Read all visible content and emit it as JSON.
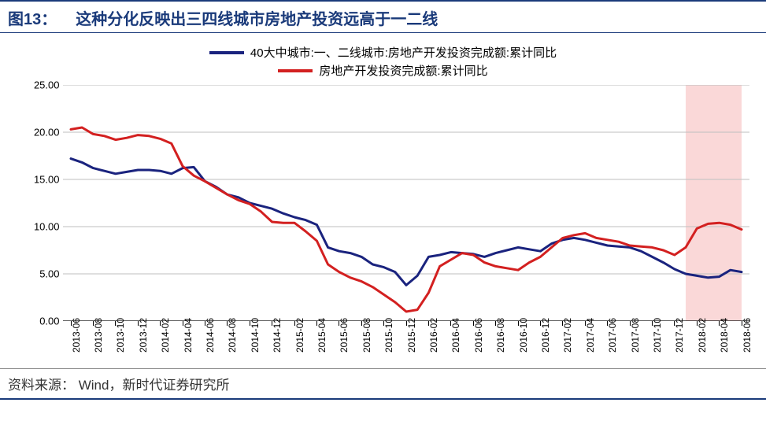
{
  "figure": {
    "label": "图13：",
    "title": "这种分化反映出三四线城市房地产投资远高于一二线"
  },
  "legend": {
    "items": [
      {
        "label": "40大中城市:一、二线城市:房地产开发投资完成额:累计同比",
        "color": "#1a237e"
      },
      {
        "label": "房地产开发投资完成额:累计同比",
        "color": "#d32020"
      }
    ]
  },
  "chart": {
    "type": "line",
    "background_color": "#ffffff",
    "grid_color": "#bfbfbf",
    "grid_width": 1,
    "axis_color": "#000000",
    "ylim": [
      0,
      25
    ],
    "ytick_step": 5,
    "yticks": [
      0,
      5,
      10,
      15,
      20,
      25
    ],
    "ytick_labels": [
      "0.00",
      "5.00",
      "10.00",
      "15.00",
      "20.00",
      "25.00"
    ],
    "ytick_fontsize": 13,
    "xtick_fontsize": 12,
    "xtick_rotation": -90,
    "line_width": 3,
    "highlight_band": {
      "x_start_index": 55,
      "x_end_index": 60,
      "fill": "#f5b8b8",
      "opacity": 0.55
    },
    "x_categories": [
      "2013-06",
      "2013-07",
      "2013-08",
      "2013-09",
      "2013-10",
      "2013-11",
      "2013-12",
      "2014-01",
      "2014-02",
      "2014-03",
      "2014-04",
      "2014-05",
      "2014-06",
      "2014-07",
      "2014-08",
      "2014-09",
      "2014-10",
      "2014-11",
      "2014-12",
      "2015-01",
      "2015-02",
      "2015-03",
      "2015-04",
      "2015-05",
      "2015-06",
      "2015-07",
      "2015-08",
      "2015-09",
      "2015-10",
      "2015-11",
      "2015-12",
      "2016-01",
      "2016-02",
      "2016-03",
      "2016-04",
      "2016-05",
      "2016-06",
      "2016-07",
      "2016-08",
      "2016-09",
      "2016-10",
      "2016-11",
      "2016-12",
      "2017-01",
      "2017-02",
      "2017-03",
      "2017-04",
      "2017-05",
      "2017-06",
      "2017-07",
      "2017-08",
      "2017-09",
      "2017-10",
      "2017-11",
      "2017-12",
      "2018-01",
      "2018-02",
      "2018-03",
      "2018-04",
      "2018-05",
      "2018-06"
    ],
    "x_tick_indices": [
      0,
      2,
      4,
      6,
      8,
      10,
      12,
      14,
      16,
      18,
      20,
      22,
      24,
      26,
      28,
      30,
      32,
      34,
      36,
      38,
      40,
      42,
      44,
      46,
      48,
      50,
      52,
      54,
      56,
      58,
      60
    ],
    "series": [
      {
        "name": "tier12",
        "color": "#1a237e",
        "values": [
          17.2,
          16.8,
          16.2,
          15.9,
          15.6,
          15.8,
          16.0,
          16.0,
          15.9,
          15.6,
          16.2,
          16.3,
          14.8,
          14.2,
          13.4,
          13.1,
          12.5,
          12.2,
          11.9,
          11.4,
          11.0,
          10.7,
          10.2,
          7.8,
          7.4,
          7.2,
          6.8,
          6.0,
          5.7,
          5.2,
          3.8,
          4.8,
          6.8,
          7.0,
          7.3,
          7.2,
          7.1,
          6.8,
          7.2,
          7.5,
          7.8,
          7.6,
          7.4,
          8.2,
          8.6,
          8.8,
          8.6,
          8.3,
          8.0,
          7.9,
          7.8,
          7.4,
          6.8,
          6.2,
          5.5,
          5.0,
          4.8,
          4.6,
          4.7,
          5.4,
          5.2
        ]
      },
      {
        "name": "national",
        "color": "#d32020",
        "values": [
          20.3,
          20.5,
          19.8,
          19.6,
          19.2,
          19.4,
          19.7,
          19.6,
          19.3,
          18.8,
          16.4,
          15.4,
          14.8,
          14.1,
          13.4,
          12.8,
          12.4,
          11.6,
          10.5,
          10.4,
          10.4,
          9.5,
          8.5,
          6.0,
          5.2,
          4.6,
          4.2,
          3.6,
          2.8,
          2.0,
          1.0,
          1.2,
          3.0,
          5.8,
          6.5,
          7.2,
          7.0,
          6.2,
          5.8,
          5.6,
          5.4,
          6.2,
          6.8,
          7.8,
          8.8,
          9.1,
          9.3,
          8.8,
          8.6,
          8.4,
          8.0,
          7.9,
          7.8,
          7.5,
          7.0,
          7.8,
          9.8,
          10.3,
          10.4,
          10.2,
          9.7
        ]
      }
    ]
  },
  "source": {
    "label": "资料来源：",
    "text": "Wind，新时代证券研究所"
  }
}
